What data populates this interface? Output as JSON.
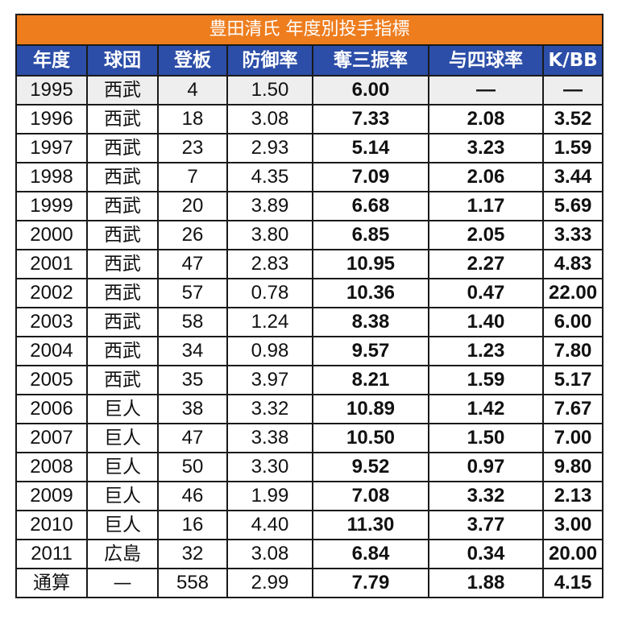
{
  "title": "豊田清氏 年度別投手指標",
  "headers": [
    "年度",
    "球団",
    "登板",
    "防御率",
    "奪三振率",
    "与四球率",
    "K/BB"
  ],
  "rows": [
    [
      "1995",
      "西武",
      "4",
      "1.50",
      "6.00",
      "—",
      "—"
    ],
    [
      "1996",
      "西武",
      "18",
      "3.08",
      "7.33",
      "2.08",
      "3.52"
    ],
    [
      "1997",
      "西武",
      "23",
      "2.93",
      "5.14",
      "3.23",
      "1.59"
    ],
    [
      "1998",
      "西武",
      "7",
      "4.35",
      "7.09",
      "2.06",
      "3.44"
    ],
    [
      "1999",
      "西武",
      "20",
      "3.89",
      "6.68",
      "1.17",
      "5.69"
    ],
    [
      "2000",
      "西武",
      "26",
      "3.80",
      "6.85",
      "2.05",
      "3.33"
    ],
    [
      "2001",
      "西武",
      "47",
      "2.83",
      "10.95",
      "2.27",
      "4.83"
    ],
    [
      "2002",
      "西武",
      "57",
      "0.78",
      "10.36",
      "0.47",
      "22.00"
    ],
    [
      "2003",
      "西武",
      "58",
      "1.24",
      "8.38",
      "1.40",
      "6.00"
    ],
    [
      "2004",
      "西武",
      "34",
      "0.98",
      "9.57",
      "1.23",
      "7.80"
    ],
    [
      "2005",
      "西武",
      "35",
      "3.97",
      "8.21",
      "1.59",
      "5.17"
    ],
    [
      "2006",
      "巨人",
      "38",
      "3.32",
      "10.89",
      "1.42",
      "7.67"
    ],
    [
      "2007",
      "巨人",
      "47",
      "3.38",
      "10.50",
      "1.50",
      "7.00"
    ],
    [
      "2008",
      "巨人",
      "50",
      "3.30",
      "9.52",
      "0.97",
      "9.80"
    ],
    [
      "2009",
      "巨人",
      "46",
      "1.99",
      "7.08",
      "3.32",
      "2.13"
    ],
    [
      "2010",
      "巨人",
      "16",
      "4.40",
      "11.30",
      "3.77",
      "3.00"
    ],
    [
      "2011",
      "広島",
      "32",
      "3.08",
      "6.84",
      "0.34",
      "20.00"
    ],
    [
      "通算",
      "—",
      "558",
      "2.99",
      "7.79",
      "1.88",
      "4.15"
    ]
  ],
  "colors": {
    "title_bg": "#ee7d1e",
    "header_bg": "#2c4ea8",
    "header_text": "#ffffff",
    "shaded_row": "#eeeeee"
  }
}
